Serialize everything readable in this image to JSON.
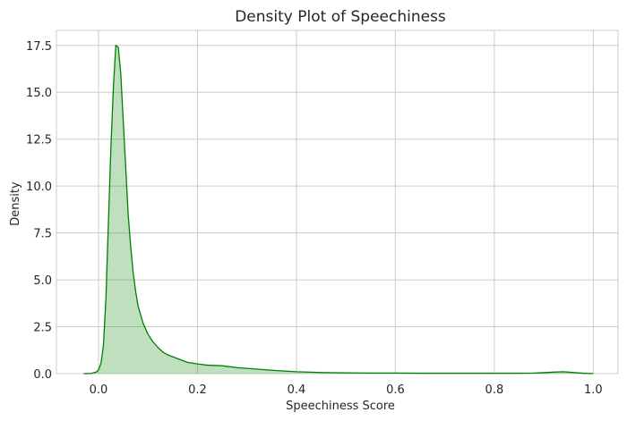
{
  "chart_data": {
    "type": "area",
    "title": "Density Plot of Speechiness",
    "xlabel": "Speechiness Score",
    "ylabel": "Density",
    "xlim": [
      -0.085,
      1.05
    ],
    "ylim": [
      0,
      18.3
    ],
    "xticks": [
      0.0,
      0.2,
      0.4,
      0.6,
      0.8,
      1.0
    ],
    "xtick_labels": [
      "0.0",
      "0.2",
      "0.4",
      "0.6",
      "0.8",
      "1.0"
    ],
    "yticks": [
      0,
      2.5,
      5,
      7.5,
      10,
      12.5,
      15,
      17.5
    ],
    "ytick_labels": [
      "0.0",
      "2.5",
      "5.0",
      "7.5",
      "10.0",
      "12.5",
      "15.0",
      "17.5"
    ],
    "grid": true,
    "style": "whitegrid",
    "line_color": "#008000",
    "fill_color": "#008000",
    "fill_opacity": 0.25,
    "series": [
      {
        "x": [
          -0.03,
          -0.015,
          -0.005,
          0.0,
          0.005,
          0.01,
          0.015,
          0.02,
          0.025,
          0.03,
          0.035,
          0.04,
          0.045,
          0.05,
          0.055,
          0.06,
          0.065,
          0.07,
          0.075,
          0.08,
          0.09,
          0.1,
          0.11,
          0.12,
          0.13,
          0.14,
          0.15,
          0.16,
          0.18,
          0.2,
          0.22,
          0.25,
          0.28,
          0.3,
          0.33,
          0.36,
          0.4,
          0.45,
          0.5,
          0.55,
          0.6,
          0.65,
          0.7,
          0.75,
          0.8,
          0.85,
          0.88,
          0.9,
          0.92,
          0.94,
          0.96,
          0.98,
          1.0
        ],
        "y": [
          0.0,
          0.01,
          0.08,
          0.2,
          0.55,
          1.5,
          4.0,
          8.0,
          12.0,
          15.2,
          17.5,
          17.4,
          16.0,
          13.5,
          11.0,
          8.5,
          6.8,
          5.4,
          4.4,
          3.6,
          2.7,
          2.1,
          1.7,
          1.4,
          1.15,
          1.0,
          0.9,
          0.8,
          0.6,
          0.52,
          0.45,
          0.42,
          0.32,
          0.28,
          0.22,
          0.16,
          0.1,
          0.06,
          0.04,
          0.03,
          0.03,
          0.02,
          0.02,
          0.02,
          0.02,
          0.02,
          0.03,
          0.05,
          0.08,
          0.1,
          0.06,
          0.02,
          0.0
        ]
      }
    ]
  }
}
